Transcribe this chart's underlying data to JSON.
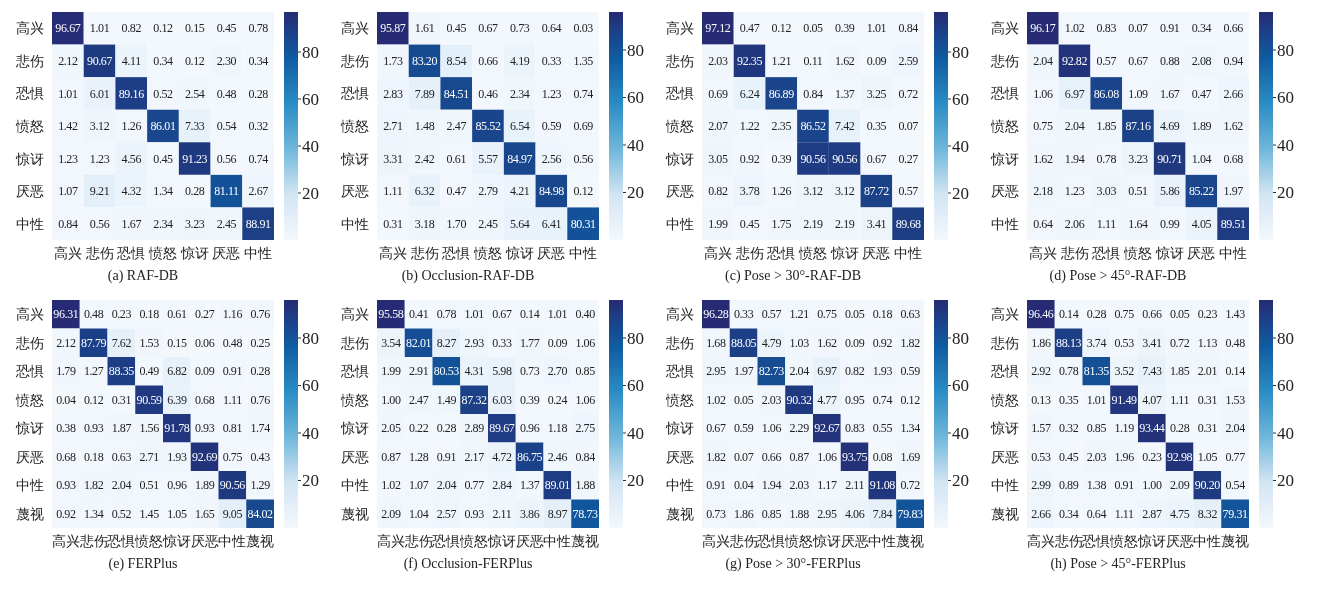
{
  "chart_data": [
    {
      "type": "heatmap",
      "data_labels": true,
      "title": "(a) RAF-DB",
      "categories": [
        "高兴",
        "悲伤",
        "恐惧",
        "愤怒",
        "惊讶",
        "厌恶",
        "中性"
      ],
      "y_categories": [
        "高兴",
        "悲伤",
        "恐惧",
        "愤怒",
        "惊讶",
        "厌恶",
        "中性"
      ],
      "clim": [
        0,
        97
      ],
      "cticks": [
        20,
        40,
        60,
        80
      ],
      "cells": [
        [
          96.67,
          1.01,
          0.82,
          0.12,
          0.15,
          0.45,
          0.78
        ],
        [
          2.12,
          90.67,
          4.11,
          0.34,
          0.12,
          2.3,
          0.34
        ],
        [
          1.01,
          6.01,
          89.16,
          0.52,
          2.54,
          0.48,
          0.28
        ],
        [
          1.42,
          3.12,
          1.26,
          86.01,
          7.33,
          0.54,
          0.32
        ],
        [
          1.23,
          1.23,
          4.56,
          0.45,
          91.23,
          0.56,
          0.74
        ],
        [
          1.07,
          9.21,
          4.32,
          1.34,
          0.28,
          81.11,
          2.67
        ],
        [
          0.84,
          0.56,
          1.67,
          2.34,
          3.23,
          2.45,
          88.91
        ]
      ],
      "cell_labels": [
        [
          "96.67",
          "1.01",
          "0.82",
          "0.12",
          "0.15",
          "0.45",
          "0.78"
        ],
        [
          "2.12",
          "90.67",
          "4.11",
          "0.34",
          "0.12",
          "2.30",
          "0.34"
        ],
        [
          "1.01",
          "6.01",
          "89.16",
          "0.52",
          "2.54",
          "0.48",
          "0.28"
        ],
        [
          "1.42",
          "3.12",
          "1.26",
          "86.01",
          "7.33",
          "0.54",
          "0.32"
        ],
        [
          "1.23",
          "1.23",
          "4.56",
          "0.45",
          "91.23",
          "0.56",
          "0.74"
        ],
        [
          "1.07",
          "9.21",
          "4.32",
          "1.34",
          "0.28",
          "81.11",
          "2.67"
        ],
        [
          "0.84",
          "0.56",
          "1.67",
          "2.34",
          "3.23",
          "2.45",
          "88.91"
        ]
      ]
    },
    {
      "type": "heatmap",
      "data_labels": true,
      "title": "(b) Occlusion-RAF-DB",
      "categories": [
        "高兴",
        "悲伤",
        "恐惧",
        "愤怒",
        "惊讶",
        "厌恶",
        "中性"
      ],
      "y_categories": [
        "高兴",
        "悲伤",
        "恐惧",
        "愤怒",
        "惊讶",
        "厌恶",
        "中性"
      ],
      "clim": [
        0,
        96
      ],
      "cticks": [
        20,
        40,
        60,
        80
      ],
      "cells": [
        [
          95.87,
          1.61,
          0.45,
          0.67,
          0.73,
          0.64,
          0.03
        ],
        [
          1.73,
          83.2,
          8.54,
          0.66,
          4.19,
          0.33,
          1.35
        ],
        [
          2.83,
          7.89,
          84.51,
          0.46,
          2.34,
          1.23,
          0.74
        ],
        [
          2.71,
          1.48,
          2.47,
          85.52,
          6.54,
          0.59,
          0.69
        ],
        [
          3.31,
          2.42,
          0.61,
          5.57,
          84.97,
          2.56,
          0.56
        ],
        [
          1.11,
          6.32,
          0.47,
          2.79,
          4.21,
          84.98,
          0.12
        ],
        [
          0.31,
          3.18,
          1.7,
          2.45,
          5.64,
          6.41,
          80.31
        ]
      ],
      "cell_labels": [
        [
          "95.87",
          "1.61",
          "0.45",
          "0.67",
          "0.73",
          "0.64",
          "0.03"
        ],
        [
          "1.73",
          "83.20",
          "8.54",
          "0.66",
          "4.19",
          "0.33",
          "1.35"
        ],
        [
          "2.83",
          "7.89",
          "84.51",
          "0.46",
          "2.34",
          "1.23",
          "0.74"
        ],
        [
          "2.71",
          "1.48",
          "2.47",
          "85.52",
          "6.54",
          "0.59",
          "0.69"
        ],
        [
          "3.31",
          "2.42",
          "0.61",
          "5.57",
          "84.97",
          "2.56",
          "0.56"
        ],
        [
          "1.11",
          "6.32",
          "0.47",
          "2.79",
          "4.21",
          "84.98",
          "0.12"
        ],
        [
          "0.31",
          "3.18",
          "1.70",
          "2.45",
          "5.64",
          "6.41",
          "80.31"
        ]
      ]
    },
    {
      "type": "heatmap",
      "data_labels": true,
      "title": "(c) Pose > 30°-RAF-DB",
      "categories": [
        "高兴",
        "悲伤",
        "恐惧",
        "愤怒",
        "惊讶",
        "厌恶",
        "中性"
      ],
      "y_categories": [
        "高兴",
        "悲伤",
        "恐惧",
        "愤怒",
        "惊讶",
        "厌恶",
        "中性"
      ],
      "clim": [
        0,
        97
      ],
      "cticks": [
        20,
        40,
        60,
        80
      ],
      "cells": [
        [
          97.12,
          0.47,
          0.12,
          0.05,
          0.39,
          1.01,
          0.84
        ],
        [
          2.03,
          92.35,
          1.21,
          0.11,
          1.62,
          0.09,
          2.59
        ],
        [
          0.69,
          6.24,
          86.89,
          0.84,
          1.37,
          3.25,
          0.72
        ],
        [
          2.07,
          1.22,
          2.35,
          86.52,
          7.42,
          0.35,
          0.07
        ],
        [
          3.05,
          0.92,
          0.39,
          90.56,
          90.56,
          0.67,
          0.27
        ],
        [
          0.82,
          3.78,
          1.26,
          3.12,
          3.12,
          87.72,
          0.57
        ],
        [
          1.99,
          0.45,
          1.75,
          2.19,
          2.19,
          3.41,
          89.68
        ]
      ]
    },
    {
      "type": "heatmap",
      "data_labels": true,
      "title": "(d) Pose > 45°-RAF-DB",
      "categories": [
        "高兴",
        "悲伤",
        "恐惧",
        "愤怒",
        "惊讶",
        "厌恶",
        "中性"
      ],
      "y_categories": [
        "高兴",
        "悲伤",
        "恐惧",
        "愤怒",
        "惊讶",
        "厌恶",
        "中性"
      ],
      "clim": [
        0,
        96
      ],
      "cticks": [
        20,
        40,
        60,
        80
      ],
      "cells": [
        [
          96.17,
          1.02,
          0.83,
          0.07,
          0.91,
          0.34,
          0.66
        ],
        [
          2.04,
          92.82,
          0.57,
          0.67,
          0.88,
          2.08,
          0.94
        ],
        [
          1.06,
          6.97,
          86.08,
          1.09,
          1.67,
          0.47,
          2.66
        ],
        [
          0.75,
          2.04,
          1.85,
          87.16,
          4.69,
          1.89,
          1.62
        ],
        [
          1.62,
          1.94,
          0.78,
          3.23,
          90.71,
          1.04,
          0.68
        ],
        [
          2.18,
          1.23,
          3.03,
          0.51,
          5.86,
          85.22,
          1.97
        ],
        [
          0.64,
          2.06,
          1.11,
          1.64,
          0.99,
          4.05,
          89.51
        ]
      ]
    },
    {
      "type": "heatmap",
      "data_labels": true,
      "title": "(e) FERPlus",
      "categories": [
        "高兴",
        "悲伤",
        "恐惧",
        "愤怒",
        "惊讶",
        "厌恶",
        "中性",
        "蔑视"
      ],
      "y_categories": [
        "高兴",
        "悲伤",
        "恐惧",
        "愤怒",
        "惊讶",
        "厌恶",
        "中性",
        "蔑视"
      ],
      "clim": [
        0,
        96
      ],
      "cticks": [
        20,
        40,
        60,
        80
      ],
      "cells": [
        [
          96.31,
          0.48,
          0.23,
          0.18,
          0.61,
          0.27,
          1.16,
          0.76
        ],
        [
          2.12,
          87.79,
          7.62,
          1.53,
          0.15,
          0.06,
          0.48,
          0.25
        ],
        [
          1.79,
          1.27,
          88.35,
          0.49,
          6.82,
          0.09,
          0.91,
          0.28
        ],
        [
          0.04,
          0.12,
          0.31,
          90.59,
          6.39,
          0.68,
          1.11,
          0.76
        ],
        [
          0.38,
          0.93,
          1.87,
          1.56,
          91.78,
          0.93,
          0.81,
          1.74
        ],
        [
          0.68,
          0.18,
          0.63,
          2.71,
          1.93,
          92.69,
          0.75,
          0.43
        ],
        [
          0.93,
          1.82,
          2.04,
          0.51,
          0.96,
          1.89,
          90.56,
          1.29
        ],
        [
          0.92,
          1.34,
          0.52,
          1.45,
          1.05,
          1.65,
          9.05,
          84.02
        ]
      ]
    },
    {
      "type": "heatmap",
      "data_labels": true,
      "title": "(f) Occlusion-FERPlus",
      "categories": [
        "高兴",
        "悲伤",
        "恐惧",
        "愤怒",
        "惊讶",
        "厌恶",
        "中性",
        "蔑视"
      ],
      "y_categories": [
        "高兴",
        "悲伤",
        "恐惧",
        "愤怒",
        "惊讶",
        "厌恶",
        "中性",
        "蔑视"
      ],
      "clim": [
        0,
        96
      ],
      "cticks": [
        20,
        40,
        60,
        80
      ],
      "cells": [
        [
          95.58,
          0.41,
          0.78,
          1.01,
          0.67,
          0.14,
          1.01,
          0.4
        ],
        [
          3.54,
          82.01,
          8.27,
          2.93,
          0.33,
          1.77,
          0.09,
          1.06
        ],
        [
          1.99,
          2.91,
          80.53,
          4.31,
          5.98,
          0.73,
          2.7,
          0.85
        ],
        [
          1.0,
          2.47,
          1.49,
          87.32,
          6.03,
          0.39,
          0.24,
          1.06
        ],
        [
          2.05,
          0.22,
          0.28,
          2.89,
          89.67,
          0.96,
          1.18,
          2.75
        ],
        [
          0.87,
          1.28,
          0.91,
          2.17,
          4.72,
          86.75,
          2.46,
          0.84
        ],
        [
          1.02,
          1.07,
          2.04,
          0.77,
          2.84,
          1.37,
          89.01,
          1.88
        ],
        [
          2.09,
          1.04,
          2.57,
          0.93,
          2.11,
          3.86,
          8.97,
          78.73
        ]
      ],
      "cell_labels": [
        [
          "95.58",
          "0.41",
          "0.78",
          "1.01",
          "0.67",
          "0.14",
          "1.01",
          "0.40"
        ],
        [
          "3.54",
          "82.01",
          "8.27",
          "2.93",
          "0.33",
          "1.77",
          "0.09",
          "1.06"
        ],
        [
          "1.99",
          "2.91",
          "80.53",
          "4.31",
          "5.98",
          "0.73",
          "2.70",
          "0.85"
        ],
        [
          "1.00",
          "2.47",
          "1.49",
          "87.32",
          "6.03",
          "0.39",
          "0.24",
          "1.06"
        ],
        [
          "2.05",
          "0.22",
          "0.28",
          "2.89",
          "89.67",
          "0.96",
          "1.18",
          "2.75"
        ],
        [
          "0.87",
          "1.28",
          "0.91",
          "2.17",
          "4.72",
          "86.75",
          "2.46",
          "0.84"
        ],
        [
          "1.02",
          "1.07",
          "2.04",
          "0.77",
          "2.84",
          "1.37",
          "89.01",
          "1.88"
        ],
        [
          "2.09",
          "1.04",
          "2.57",
          "0.93",
          "2.11",
          "3.86",
          "8.97",
          "78.73"
        ]
      ]
    },
    {
      "type": "heatmap",
      "data_labels": true,
      "title": "(g) Pose > 30°-FERPlus",
      "categories": [
        "高兴",
        "悲伤",
        "恐惧",
        "愤怒",
        "惊讶",
        "厌恶",
        "中性",
        "蔑视"
      ],
      "y_categories": [
        "高兴",
        "悲伤",
        "恐惧",
        "愤怒",
        "惊讶",
        "厌恶",
        "中性",
        "蔑视"
      ],
      "clim": [
        0,
        96
      ],
      "cticks": [
        20,
        40,
        60,
        80
      ],
      "cells": [
        [
          96.28,
          0.33,
          0.57,
          1.21,
          0.75,
          0.05,
          0.18,
          0.63
        ],
        [
          1.68,
          88.05,
          4.79,
          1.03,
          1.62,
          0.09,
          0.92,
          1.82
        ],
        [
          2.95,
          1.97,
          82.73,
          2.04,
          6.97,
          0.82,
          1.93,
          0.59
        ],
        [
          1.02,
          0.05,
          2.03,
          90.32,
          4.77,
          0.95,
          0.74,
          0.12
        ],
        [
          0.67,
          0.59,
          1.06,
          2.29,
          92.67,
          0.83,
          0.55,
          1.34
        ],
        [
          1.82,
          0.07,
          0.66,
          0.87,
          1.06,
          93.75,
          0.08,
          1.69
        ],
        [
          0.91,
          0.04,
          1.94,
          2.03,
          1.17,
          2.11,
          91.08,
          0.72
        ],
        [
          0.73,
          1.86,
          0.85,
          1.88,
          2.95,
          4.06,
          7.84,
          79.83
        ]
      ]
    },
    {
      "type": "heatmap",
      "data_labels": true,
      "title": "(h) Pose > 45°-FERPlus",
      "categories": [
        "高兴",
        "悲伤",
        "恐惧",
        "愤怒",
        "惊讶",
        "厌恶",
        "中性",
        "蔑视"
      ],
      "y_categories": [
        "高兴",
        "悲伤",
        "恐惧",
        "愤怒",
        "惊讶",
        "厌恶",
        "中性",
        "蔑视"
      ],
      "clim": [
        0,
        96
      ],
      "cticks": [
        20,
        40,
        60,
        80
      ],
      "cells": [
        [
          96.46,
          0.14,
          0.28,
          0.75,
          0.66,
          0.05,
          0.23,
          1.43
        ],
        [
          1.86,
          88.13,
          3.74,
          0.53,
          3.41,
          0.72,
          1.13,
          0.48
        ],
        [
          2.92,
          0.78,
          81.35,
          3.52,
          7.43,
          1.85,
          2.01,
          0.14
        ],
        [
          0.13,
          0.35,
          1.01,
          91.49,
          4.07,
          1.11,
          0.31,
          1.53
        ],
        [
          1.57,
          0.32,
          0.85,
          1.19,
          93.44,
          0.28,
          0.31,
          2.04
        ],
        [
          0.53,
          0.45,
          2.03,
          1.96,
          0.23,
          92.98,
          1.05,
          0.77
        ],
        [
          2.99,
          0.89,
          1.38,
          0.91,
          1.0,
          2.09,
          90.2,
          0.54
        ],
        [
          2.66,
          0.34,
          0.64,
          1.11,
          2.87,
          4.75,
          8.32,
          79.31
        ]
      ],
      "cell_labels": [
        [
          "96.46",
          "0.14",
          "0.28",
          "0.75",
          "0.66",
          "0.05",
          "0.23",
          "1.43"
        ],
        [
          "1.86",
          "88.13",
          "3.74",
          "0.53",
          "3.41",
          "0.72",
          "1.13",
          "0.48"
        ],
        [
          "2.92",
          "0.78",
          "81.35",
          "3.52",
          "7.43",
          "1.85",
          "2.01",
          "0.14"
        ],
        [
          "0.13",
          "0.35",
          "1.01",
          "91.49",
          "4.07",
          "1.11",
          "0.31",
          "1.53"
        ],
        [
          "1.57",
          "0.32",
          "0.85",
          "1.19",
          "93.44",
          "0.28",
          "0.31",
          "2.04"
        ],
        [
          "0.53",
          "0.45",
          "2.03",
          "1.96",
          "0.23",
          "92.98",
          "1.05",
          "0.77"
        ],
        [
          "2.99",
          "0.89",
          "1.38",
          "0.91",
          "1.00",
          "2.09",
          "90.20",
          "0.54"
        ],
        [
          "2.66",
          "0.34",
          "0.64",
          "1.11",
          "2.87",
          "4.75",
          "8.32",
          "79.31"
        ]
      ]
    }
  ]
}
